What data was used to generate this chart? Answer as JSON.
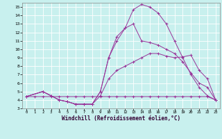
{
  "xlabel": "Windchill (Refroidissement éolien,°C)",
  "bg_color": "#c8f0ee",
  "line_color": "#993399",
  "xlim": [
    -0.5,
    23.5
  ],
  "ylim": [
    3,
    15.5
  ],
  "xticks": [
    0,
    1,
    2,
    3,
    4,
    5,
    6,
    7,
    8,
    9,
    10,
    11,
    12,
    13,
    14,
    15,
    16,
    17,
    18,
    19,
    20,
    21,
    22,
    23
  ],
  "yticks": [
    3,
    4,
    5,
    6,
    7,
    8,
    9,
    10,
    11,
    12,
    13,
    14,
    15
  ],
  "lines": [
    {
      "x": [
        0,
        1,
        2,
        3,
        4,
        5,
        6,
        7,
        8,
        9,
        10,
        11,
        12,
        13,
        14,
        15,
        16,
        17,
        18,
        19,
        20,
        21,
        22,
        23
      ],
      "y": [
        4.4,
        4.4,
        4.4,
        4.4,
        4.4,
        4.4,
        4.4,
        4.4,
        4.4,
        4.4,
        4.4,
        4.4,
        4.4,
        4.4,
        4.4,
        4.4,
        4.4,
        4.4,
        4.4,
        4.4,
        4.4,
        4.4,
        4.4,
        4.0
      ]
    },
    {
      "x": [
        0,
        2,
        3,
        4,
        5,
        6,
        7,
        8,
        9,
        10,
        11,
        12,
        13,
        14,
        15,
        16,
        17,
        18,
        19,
        20,
        21,
        22,
        23
      ],
      "y": [
        4.4,
        5.0,
        4.5,
        4.0,
        3.8,
        3.5,
        3.5,
        3.5,
        4.5,
        6.5,
        7.5,
        8.0,
        8.5,
        9.0,
        9.5,
        9.5,
        9.2,
        9.0,
        9.1,
        9.3,
        7.5,
        6.5,
        4.0
      ]
    },
    {
      "x": [
        0,
        2,
        3,
        4,
        5,
        6,
        7,
        8,
        9,
        10,
        11,
        12,
        13,
        14,
        15,
        16,
        17,
        18,
        19,
        20,
        21,
        22,
        23
      ],
      "y": [
        4.4,
        5.0,
        4.5,
        4.0,
        3.8,
        3.5,
        3.5,
        3.5,
        5.0,
        9.0,
        11.0,
        12.5,
        13.0,
        11.0,
        10.8,
        10.5,
        10.0,
        9.5,
        8.5,
        7.2,
        6.0,
        5.5,
        4.0
      ]
    },
    {
      "x": [
        0,
        2,
        3,
        4,
        5,
        6,
        7,
        8,
        9,
        10,
        11,
        12,
        13,
        14,
        15,
        16,
        17,
        18,
        19,
        20,
        21,
        22,
        23
      ],
      "y": [
        4.4,
        5.0,
        4.5,
        4.0,
        3.8,
        3.5,
        3.5,
        3.5,
        5.0,
        9.0,
        11.5,
        12.5,
        14.7,
        15.3,
        15.0,
        14.3,
        13.0,
        11.0,
        9.0,
        7.0,
        5.5,
        4.5,
        4.0
      ]
    }
  ]
}
